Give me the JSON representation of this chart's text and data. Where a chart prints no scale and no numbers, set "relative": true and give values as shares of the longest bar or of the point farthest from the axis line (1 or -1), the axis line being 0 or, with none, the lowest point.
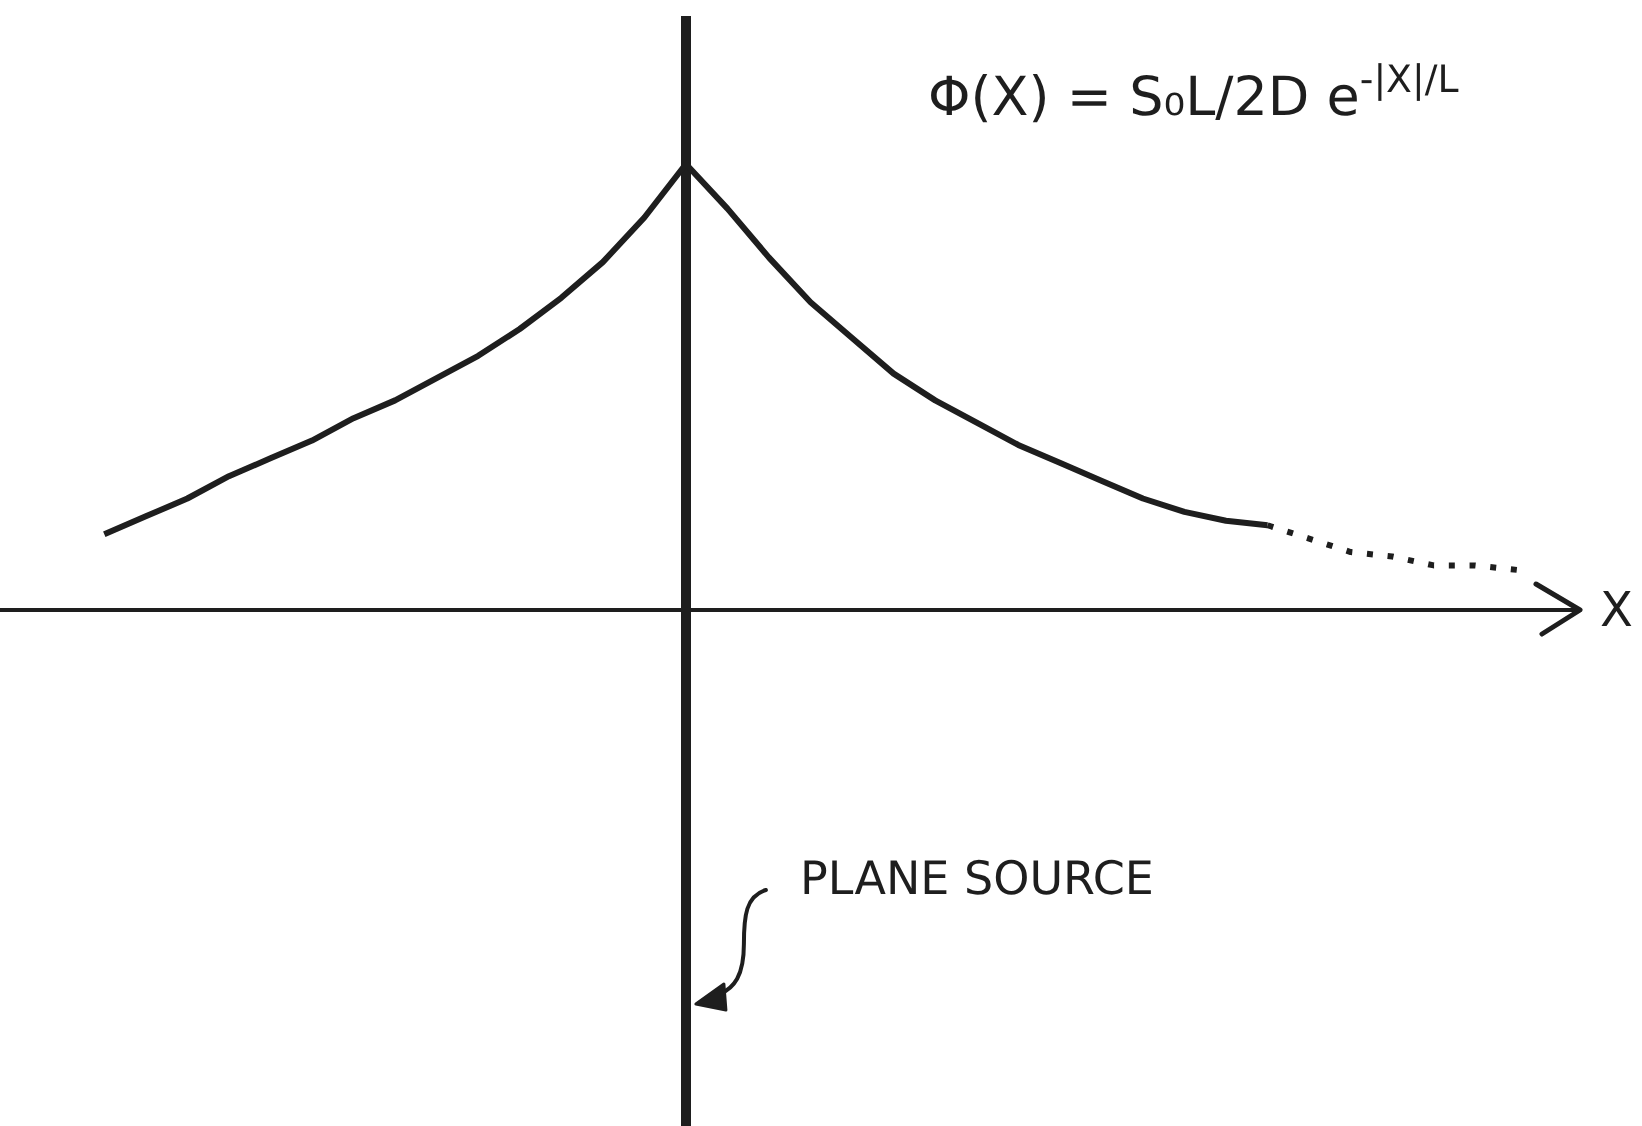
{
  "chart_data": {
    "type": "line",
    "relative": true,
    "xlabel": "X",
    "annotations": [
      "Φ(X) = S₀L/2D e$^{-|X|/L}$",
      "PLANE SOURCE"
    ],
    "categories": [
      null,
      null,
      null,
      null,
      null,
      null,
      null,
      null,
      null,
      null,
      null,
      null,
      null,
      null,
      null,
      null,
      null,
      null,
      null,
      null,
      null,
      null,
      null,
      null,
      null,
      null,
      null,
      null,
      null,
      null,
      null,
      null,
      null,
      null,
      null
    ],
    "series": [
      {
        "color": "#1e1e1e",
        "line_style": "solid",
        "values": [
          0.17,
          0.21,
          0.25,
          0.3,
          0.34,
          0.38,
          0.43,
          0.47,
          0.52,
          0.57,
          0.63,
          0.7,
          0.78,
          0.88,
          1,
          0.9,
          0.79,
          0.69,
          0.61,
          0.53,
          0.47,
          0.42,
          0.37,
          0.33,
          0.29,
          0.25,
          0.22,
          0.2,
          0.19,
          null,
          null,
          null,
          null,
          null,
          null
        ]
      },
      {
        "color": "#1e1e1e",
        "line_style": "dotted",
        "values": [
          null,
          null,
          null,
          null,
          null,
          null,
          null,
          null,
          null,
          null,
          null,
          null,
          null,
          null,
          null,
          null,
          null,
          null,
          null,
          null,
          null,
          null,
          null,
          null,
          null,
          null,
          null,
          null,
          0.19,
          0.16,
          0.13,
          0.12,
          0.1,
          0.1,
          0.09
        ]
      }
    ]
  }
}
